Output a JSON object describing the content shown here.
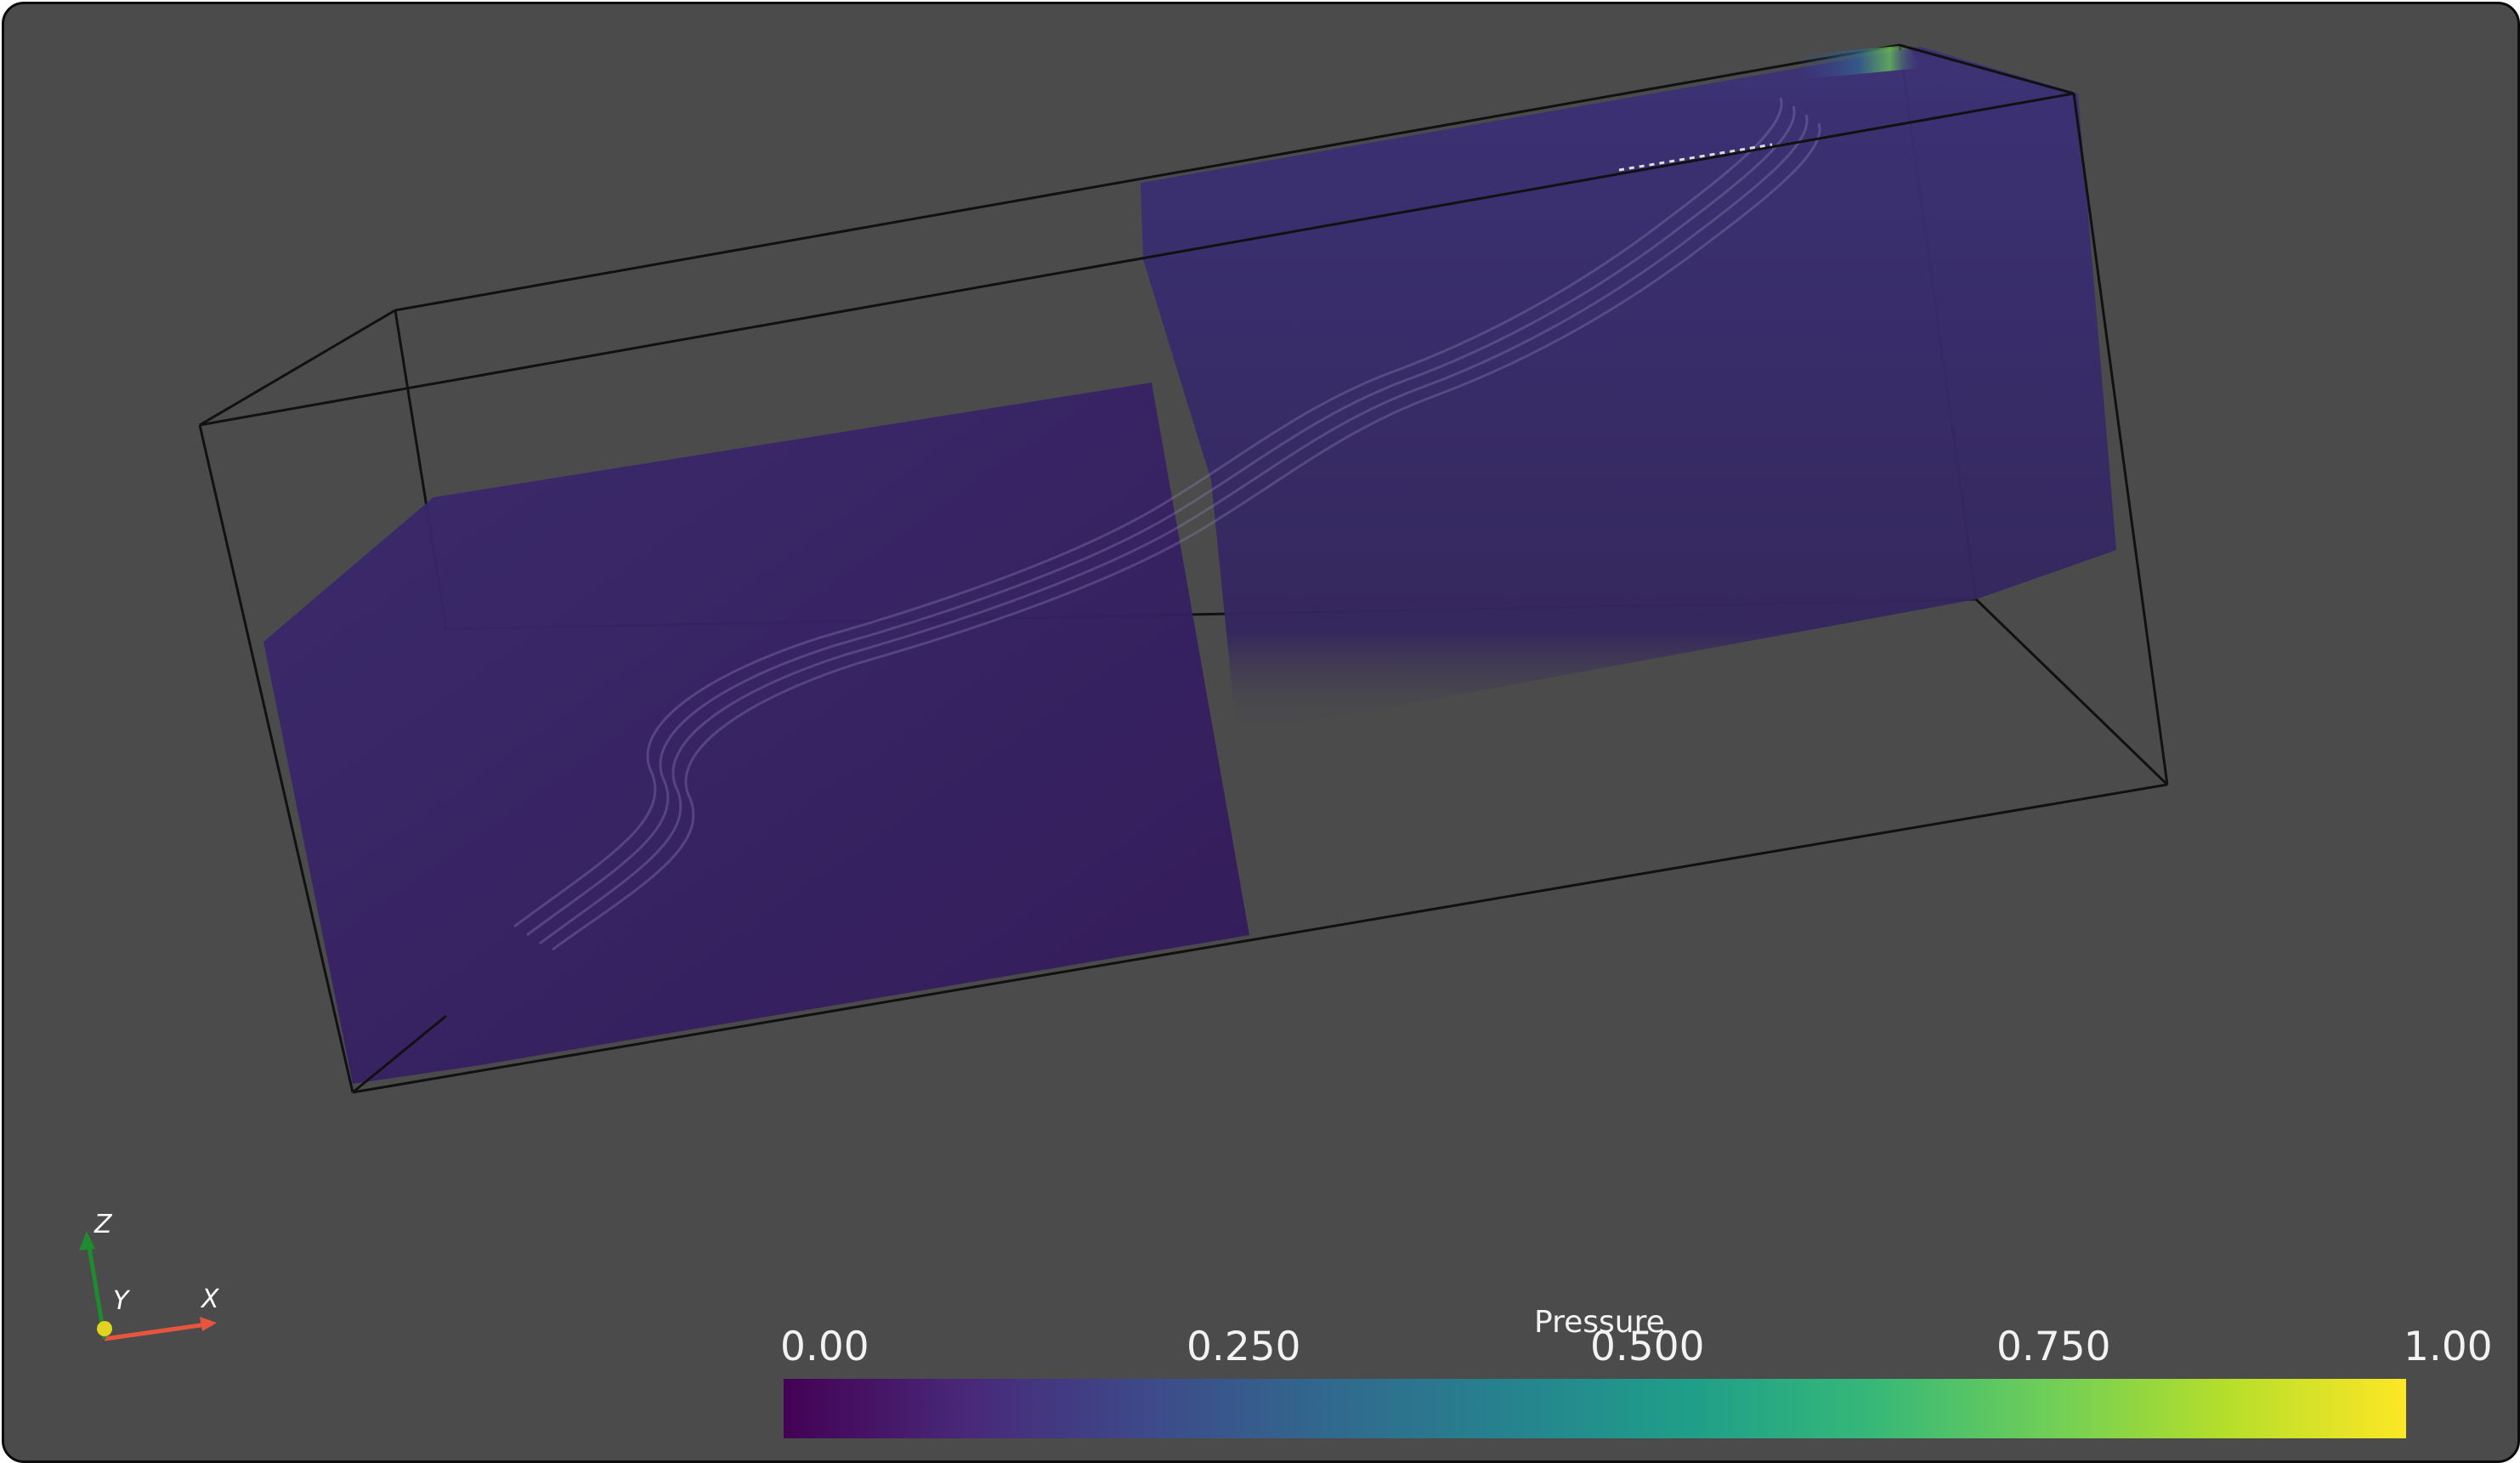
{
  "viewer": {
    "background_color": "#4b4b4b",
    "outline_color": "#111111"
  },
  "colorbar": {
    "title": "Pressure",
    "ticks": [
      "0.00",
      "0.250",
      "0.500",
      "0.750",
      "1.00"
    ],
    "range": [
      0,
      1
    ],
    "colormap": "viridis",
    "colors": [
      "#440154",
      "#482878",
      "#3e4989",
      "#31688e",
      "#26828e",
      "#1f9e89",
      "#35b779",
      "#6ece58",
      "#b5de2b",
      "#fde725"
    ]
  },
  "orientation_axes": {
    "x_label": "X",
    "y_label": "Y",
    "z_label": "Z",
    "x_color": "#e8553f",
    "y_color": "#e3d321",
    "z_color": "#1f8a2e"
  }
}
